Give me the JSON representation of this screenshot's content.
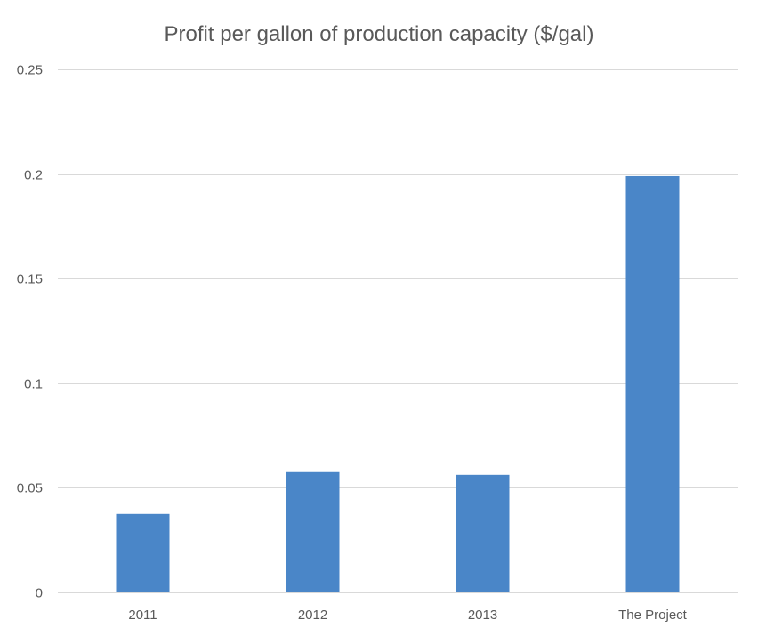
{
  "chart_data": {
    "type": "bar",
    "title": "Profit per gallon of production capacity ($/gal)",
    "xlabel": "",
    "ylabel": "",
    "categories": [
      "2011",
      "2012",
      "2013",
      "The Project"
    ],
    "values": [
      0.0375,
      0.0575,
      0.0562,
      0.199
    ],
    "ylim": [
      0,
      0.25
    ],
    "y_ticks": [
      0,
      0.05,
      0.1,
      0.15,
      0.2,
      0.25
    ],
    "y_tick_labels": [
      "0",
      "0.05",
      "0.1",
      "0.15",
      "0.2",
      "0.25"
    ],
    "grid": true,
    "legend": "none",
    "bar_color": "#4a86c8"
  }
}
